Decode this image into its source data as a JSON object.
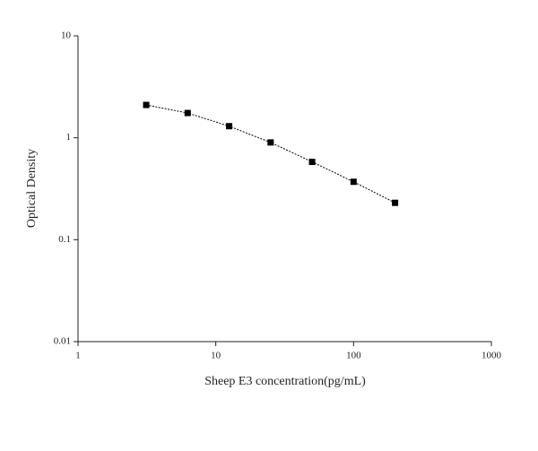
{
  "chart_data": {
    "type": "scatter",
    "xlabel": "Sheep E3 concentration(pg/mL)",
    "ylabel": "Optical Density",
    "x": [
      3.125,
      6.25,
      12.5,
      25,
      50,
      100,
      200
    ],
    "values": [
      2.1,
      1.75,
      1.3,
      0.9,
      0.58,
      0.37,
      0.23
    ],
    "color": "#000000",
    "xlim": [
      1,
      1000
    ],
    "xticks": [
      1,
      10,
      100,
      1000
    ],
    "ylim": [
      0.01,
      10
    ],
    "yticks": [
      0.01,
      0.1,
      1,
      10
    ],
    "xscale": "log",
    "yscale": "log"
  }
}
